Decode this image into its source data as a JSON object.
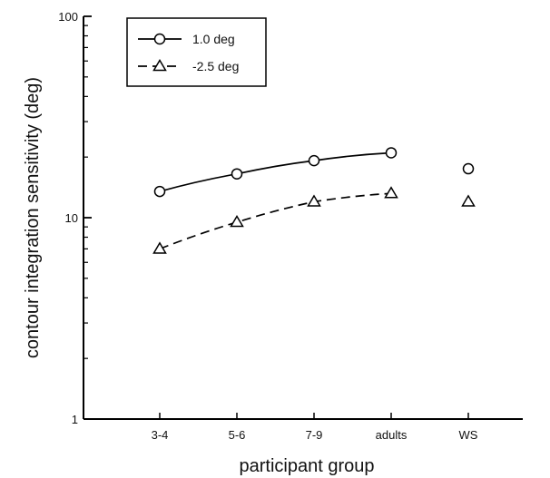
{
  "chart_data": {
    "type": "line",
    "title": "",
    "xlabel": "participant group",
    "ylabel": "contour integration sensitivity (deg)",
    "categories": [
      "3-4",
      "5-6",
      "7-9",
      "adults",
      "WS"
    ],
    "yscale": "log",
    "ylim": [
      1,
      100
    ],
    "yticks": [
      {
        "value": 1,
        "label": "1"
      },
      {
        "value": 10,
        "label": "10"
      },
      {
        "value": 100,
        "label": "100"
      }
    ],
    "grid": false,
    "legend": "top-left",
    "series": [
      {
        "name": "1.0 deg",
        "marker": "circle",
        "line": "solid",
        "values": [
          13.5,
          16.5,
          19.2,
          21,
          17.5
        ],
        "connected": [
          true,
          true,
          true,
          true,
          false
        ]
      },
      {
        "name": "-2.5 deg",
        "marker": "triangle",
        "line": "dashed",
        "values": [
          7,
          9.5,
          12,
          13.2,
          12
        ],
        "connected": [
          true,
          true,
          true,
          true,
          false
        ]
      }
    ]
  }
}
